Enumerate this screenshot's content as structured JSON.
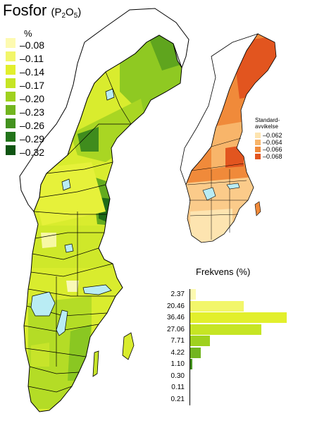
{
  "title": {
    "main": "Fosfor",
    "chem_prefix": "(P",
    "chem_sub1": "2",
    "chem_mid": "O",
    "chem_sub2": "5",
    "chem_suffix": ")"
  },
  "legend": {
    "unit": "%",
    "items": [
      {
        "label": "0.08",
        "color": "#fdfab0"
      },
      {
        "label": "0.11",
        "color": "#f2f66a"
      },
      {
        "label": "0.14",
        "color": "#e2ef2c"
      },
      {
        "label": "0.17",
        "color": "#c6e524"
      },
      {
        "label": "0.20",
        "color": "#9fd11e"
      },
      {
        "label": "0.23",
        "color": "#72b51f"
      },
      {
        "label": "0.26",
        "color": "#43921e"
      },
      {
        "label": "0.29",
        "color": "#22741a"
      },
      {
        "label": "0.32",
        "color": "#0f5412"
      }
    ]
  },
  "inset": {
    "title_line1": "Standard-",
    "title_line2": "avvikelse",
    "items": [
      {
        "label": "0.062",
        "color": "#fde4b0"
      },
      {
        "label": "0.064",
        "color": "#f8b56a"
      },
      {
        "label": "0.066",
        "color": "#f08a3a"
      },
      {
        "label": "0.068",
        "color": "#e2551f"
      }
    ]
  },
  "frequency": {
    "title": "Frekvens (%)",
    "values": [
      2.37,
      20.46,
      36.46,
      27.06,
      7.71,
      4.22,
      1.1,
      0.3,
      0.11,
      0.21
    ],
    "labels": [
      "2.37",
      "20.46",
      "36.46",
      "27.06",
      "7.71",
      "4.22",
      "1.10",
      "0.30",
      "0.11",
      "0.21"
    ]
  },
  "colors": {
    "lake": "#b9ecf4",
    "border": "#000000",
    "land_outline": "#000000"
  }
}
